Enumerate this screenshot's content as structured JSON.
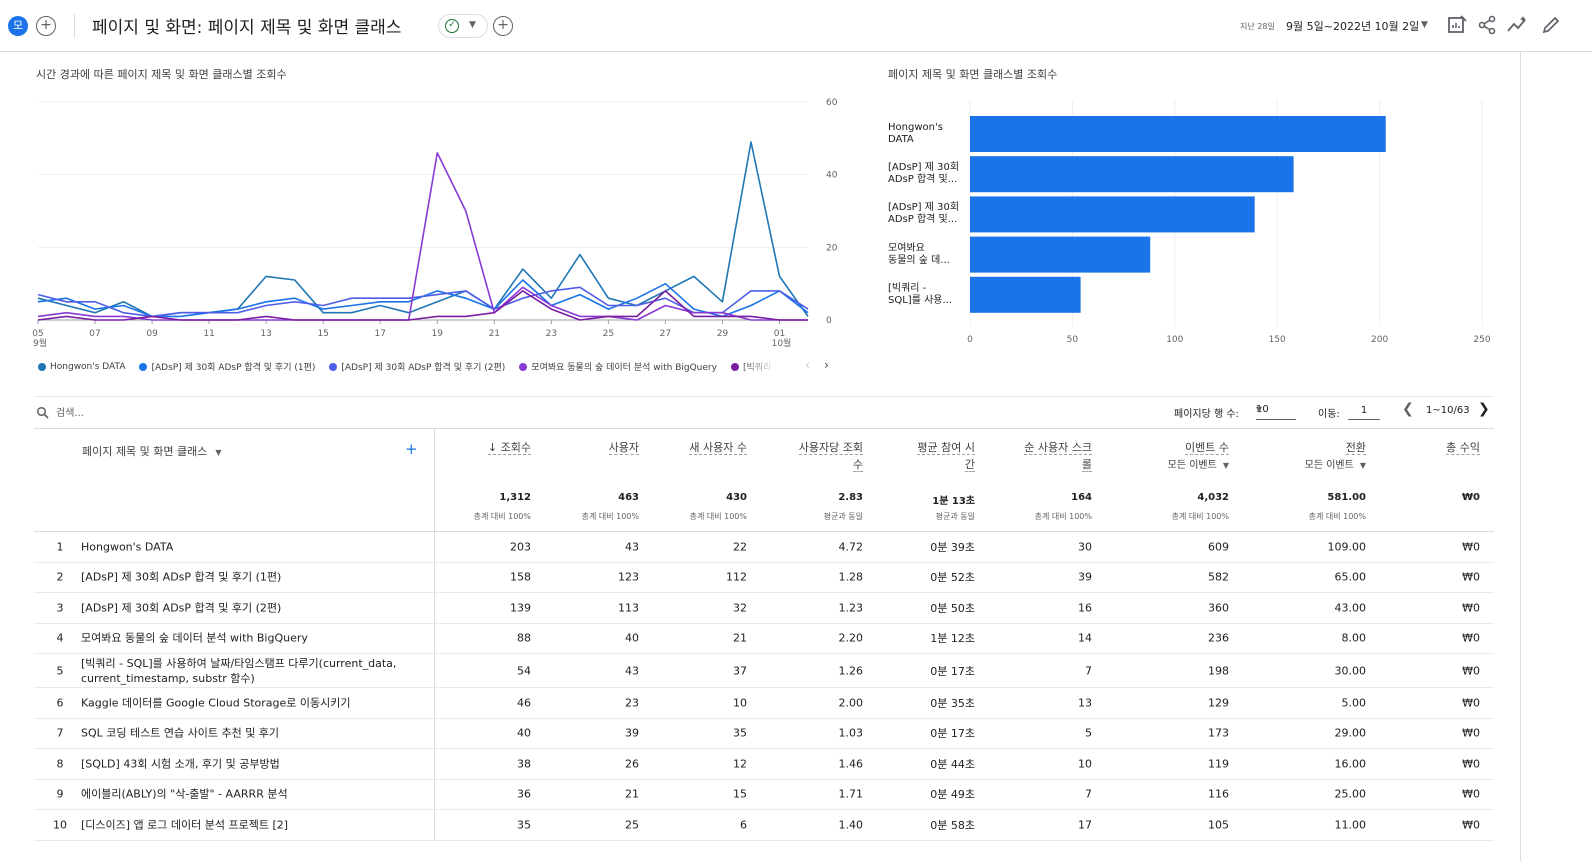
{
  "header": {
    "compare_chip": "모",
    "title": "페이지 및 화면: 페이지 제목 및 화면 클래스",
    "date_small": "지난 28일",
    "date_range": "9월 5일~2022년 10월 2일",
    "icons": [
      "edit-report-icon",
      "share-icon",
      "insights-icon",
      "customize-icon"
    ]
  },
  "line_card": {
    "title": "시간 경과에 따른 페이지 제목 및 화면 클래스별 조회수"
  },
  "bar_card": {
    "title": "페이지 제목 및 화면 클래스별 조회수"
  },
  "legend": [
    {
      "label": "Hongwon's DATA",
      "color": "#1f77b4"
    },
    {
      "label": "[ADsP] 제 30회 ADsP 합격 및 후기 (1편)",
      "color": "#1a73e8"
    },
    {
      "label": "[ADsP] 제 30회 ADsP 합격 및 후기 (2편)",
      "color": "#4f5ee8"
    },
    {
      "label": "모여봐요 동물의 숲 데이터 분석 with BigQuery",
      "color": "#8a3ad4"
    },
    {
      "label": "[빅쿼리",
      "color": "#7b1fa2"
    }
  ],
  "chart_data": [
    {
      "type": "line",
      "title": "시간 경과에 따른 페이지 제목 및 화면 클래스별 조회수",
      "x": [
        "05",
        "06",
        "07",
        "08",
        "09",
        "10",
        "11",
        "12",
        "13",
        "14",
        "15",
        "16",
        "17",
        "18",
        "19",
        "20",
        "21",
        "22",
        "23",
        "24",
        "25",
        "26",
        "27",
        "28",
        "29",
        "30",
        "01",
        "02"
      ],
      "x_tick_labels": [
        "05",
        "07",
        "09",
        "11",
        "13",
        "15",
        "17",
        "19",
        "21",
        "23",
        "25",
        "27",
        "29",
        "01"
      ],
      "x_tick_sublabels": {
        "05": "9월",
        "01": "10월"
      },
      "y_ticks": [
        0,
        20,
        40,
        60
      ],
      "ylim": [
        0,
        60
      ],
      "y_axis_side": "right",
      "series": [
        {
          "name": "Hongwon's DATA",
          "color": "#1f77b4",
          "values": [
            6,
            4,
            2,
            5,
            1,
            2,
            2,
            3,
            12,
            11,
            2,
            2,
            4,
            2,
            5,
            8,
            3,
            14,
            6,
            18,
            6,
            4,
            8,
            12,
            5,
            49,
            12,
            1
          ]
        },
        {
          "name": "[ADsP] 제 30회 ADsP 합격 및 후기 (1편)",
          "color": "#1a73e8",
          "values": [
            5,
            6,
            3,
            4,
            1,
            1,
            2,
            3,
            5,
            6,
            3,
            4,
            5,
            5,
            8,
            6,
            3,
            11,
            4,
            7,
            3,
            6,
            10,
            3,
            1,
            4,
            8,
            2
          ]
        },
        {
          "name": "[ADsP] 제 30회 ADsP 합격 및 후기 (2편)",
          "color": "#4f5ee8",
          "values": [
            7,
            5,
            5,
            2,
            1,
            2,
            2,
            2,
            4,
            5,
            4,
            6,
            6,
            6,
            7,
            8,
            3,
            6,
            8,
            9,
            4,
            4,
            6,
            2,
            2,
            8,
            8,
            3
          ]
        },
        {
          "name": "모여봐요 동물의 숲 데이터 분석 with BigQuery",
          "color": "#8a3ad4",
          "values": [
            1,
            2,
            1,
            1,
            0,
            0,
            0,
            0,
            0,
            0,
            0,
            0,
            0,
            0,
            46,
            30,
            2,
            9,
            4,
            1,
            1,
            0,
            4,
            2,
            2,
            0,
            0,
            0
          ]
        },
        {
          "name": "[빅쿼리",
          "color": "#7b1fa2",
          "values": [
            0,
            1,
            0,
            0,
            1,
            0,
            0,
            0,
            1,
            0,
            0,
            0,
            0,
            0,
            1,
            1,
            2,
            8,
            3,
            0,
            1,
            1,
            8,
            1,
            1,
            1,
            0,
            0
          ]
        }
      ]
    },
    {
      "type": "bar",
      "orientation": "horizontal",
      "title": "페이지 제목 및 화면 클래스별 조회수",
      "categories": [
        "Hongwon's\nDATA",
        "[ADsP] 제 30회\nADsP 합격 및...",
        "[ADsP] 제 30회\nADsP 합격 및...",
        "모여봐요\n동물의 숲 데...",
        "[빅쿼리 -\nSQL]를 사용..."
      ],
      "values": [
        203,
        158,
        139,
        88,
        54
      ],
      "x_ticks": [
        0,
        50,
        100,
        150,
        200,
        250
      ],
      "xlim": [
        0,
        250
      ],
      "color": "#1a73e8"
    }
  ],
  "toolbar": {
    "search_placeholder": "검색...",
    "rows_per_page_label": "페이지당 행 수:",
    "rows_per_page": "10",
    "goto_label": "이동:",
    "goto_value": "1",
    "page_range": "1~10/63"
  },
  "table": {
    "dimension_header": "페이지 제목 및 화면 클래스",
    "metrics": [
      {
        "label": "↓ 조회수",
        "sub": "",
        "total": "1,312",
        "pct": "총계 대비 100%"
      },
      {
        "label": "사용자",
        "sub": "",
        "total": "463",
        "pct": "총계 대비 100%"
      },
      {
        "label": "새 사용자 수",
        "sub": "",
        "total": "430",
        "pct": "총계 대비 100%"
      },
      {
        "label": "사용자당 조회",
        "label2": "수",
        "sub": "",
        "total": "2.83",
        "pct": "평균과 동일"
      },
      {
        "label": "평균 참여 시",
        "label2": "간",
        "sub": "",
        "total": "1분 13초",
        "pct": "평균과 동일"
      },
      {
        "label": "순 사용자 스크",
        "label2": "롤",
        "sub": "",
        "total": "164",
        "pct": "총계 대비 100%"
      },
      {
        "label": "이벤트 수",
        "sub": "모든 이벤트",
        "total": "4,032",
        "pct": "총계 대비 100%"
      },
      {
        "label": "전환",
        "sub": "모든 이벤트",
        "total": "581.00",
        "pct": "총계 대비 100%"
      },
      {
        "label": "총 수익",
        "sub": "",
        "total": "₩0",
        "pct": ""
      }
    ],
    "rows": [
      {
        "idx": "1",
        "name": "Hongwon's DATA",
        "vals": [
          "203",
          "43",
          "22",
          "4.72",
          "0분 39초",
          "30",
          "609",
          "109.00",
          "₩0"
        ]
      },
      {
        "idx": "2",
        "name": "[ADsP] 제 30회 ADsP 합격 및 후기 (1편)",
        "vals": [
          "158",
          "123",
          "112",
          "1.28",
          "0분 52초",
          "39",
          "582",
          "65.00",
          "₩0"
        ]
      },
      {
        "idx": "3",
        "name": "[ADsP] 제 30회 ADsP 합격 및 후기 (2편)",
        "vals": [
          "139",
          "113",
          "32",
          "1.23",
          "0분 50초",
          "16",
          "360",
          "43.00",
          "₩0"
        ]
      },
      {
        "idx": "4",
        "name": "모여봐요 동물의 숲 데이터 분석 with BigQuery",
        "vals": [
          "88",
          "40",
          "21",
          "2.20",
          "1분 12초",
          "14",
          "236",
          "8.00",
          "₩0"
        ]
      },
      {
        "idx": "5",
        "name": "[빅쿼리 - SQL]를 사용하여 날짜/타임스탬프 다루기(current_data, current_timestamp, substr 함수)",
        "vals": [
          "54",
          "43",
          "37",
          "1.26",
          "0분 17초",
          "7",
          "198",
          "30.00",
          "₩0"
        ]
      },
      {
        "idx": "6",
        "name": "Kaggle 데이터를 Google Cloud Storage로 이동시키기",
        "vals": [
          "46",
          "23",
          "10",
          "2.00",
          "0분 35초",
          "13",
          "129",
          "5.00",
          "₩0"
        ]
      },
      {
        "idx": "7",
        "name": "SQL 코딩 테스트 연습 사이트 추천 및 후기",
        "vals": [
          "40",
          "39",
          "35",
          "1.03",
          "0분 17초",
          "5",
          "173",
          "29.00",
          "₩0"
        ]
      },
      {
        "idx": "8",
        "name": "[SQLD] 43회 시험 소개, 후기 및 공부방법",
        "vals": [
          "38",
          "26",
          "12",
          "1.46",
          "0분 44초",
          "10",
          "119",
          "16.00",
          "₩0"
        ]
      },
      {
        "idx": "9",
        "name": "에이블리(ABLY)의 \"삭-출발\" - AARRR 분석",
        "vals": [
          "36",
          "21",
          "15",
          "1.71",
          "0분 49초",
          "7",
          "116",
          "25.00",
          "₩0"
        ]
      },
      {
        "idx": "10",
        "name": "[디스이즈] 앱 로그 데이터 분석 프로젝트 [2]",
        "vals": [
          "35",
          "25",
          "6",
          "1.40",
          "0분 58초",
          "17",
          "105",
          "11.00",
          "₩0"
        ]
      }
    ]
  }
}
